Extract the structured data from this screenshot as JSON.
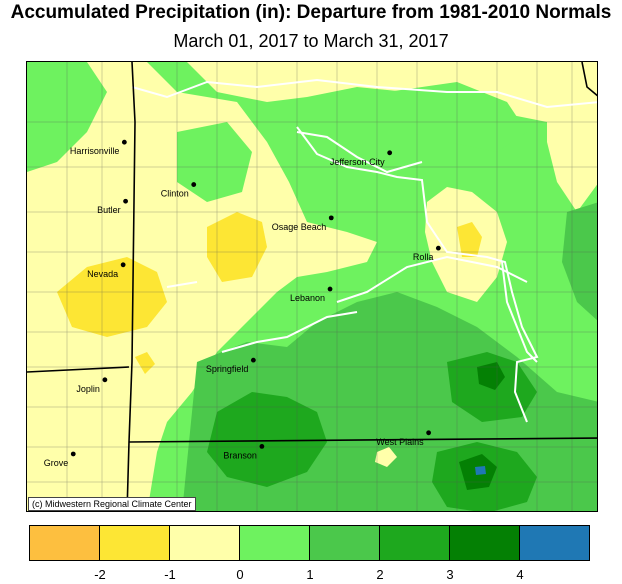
{
  "title": "Accumulated Precipitation (in): Departure from 1981-2010 Normals",
  "subtitle": "March 01, 2017 to March 31, 2017",
  "credit": "(c) Midwestern Regional Climate Center",
  "colors": {
    "bin_m3_m2": "#fdbf3f",
    "bin_m2_m1": "#fde634",
    "bin_m1_0": "#ffffaa",
    "bin_0_1": "#6ef25f",
    "bin_1_2": "#4bc84b",
    "bin_2_3": "#1ea81e",
    "bin_3_4": "#048004",
    "bin_4_plus": "#1f78b4",
    "boundary_white": "#ffffff",
    "county_line": "#555555",
    "state_line": "#000000"
  },
  "legend": {
    "swatches": [
      "#fdbf3f",
      "#fde634",
      "#ffffaa",
      "#6ef25f",
      "#4bc84b",
      "#1ea81e",
      "#048004",
      "#1f78b4"
    ],
    "ticks": [
      "-2",
      "-1",
      "0",
      "1",
      "2",
      "3",
      "4"
    ]
  },
  "cities": [
    {
      "name": "Harrisonville",
      "lon": -94.35,
      "lat": 38.65
    },
    {
      "name": "Jefferson City",
      "lon": -92.17,
      "lat": 38.58
    },
    {
      "name": "Clinton",
      "lon": -93.78,
      "lat": 38.37
    },
    {
      "name": "Butler",
      "lon": -94.34,
      "lat": 38.26
    },
    {
      "name": "Osage Beach",
      "lon": -92.65,
      "lat": 38.15
    },
    {
      "name": "Rolla",
      "lon": -91.77,
      "lat": 37.95
    },
    {
      "name": "Nevada",
      "lon": -94.36,
      "lat": 37.84
    },
    {
      "name": "Lebanon",
      "lon": -92.66,
      "lat": 37.68
    },
    {
      "name": "Springfield",
      "lon": -93.29,
      "lat": 37.21
    },
    {
      "name": "Joplin",
      "lon": -94.51,
      "lat": 37.08
    },
    {
      "name": "West Plains",
      "lon": -91.85,
      "lat": 36.73
    },
    {
      "name": "Branson",
      "lon": -93.22,
      "lat": 36.64
    },
    {
      "name": "Grove",
      "lon": -94.77,
      "lat": 36.59
    }
  ]
}
